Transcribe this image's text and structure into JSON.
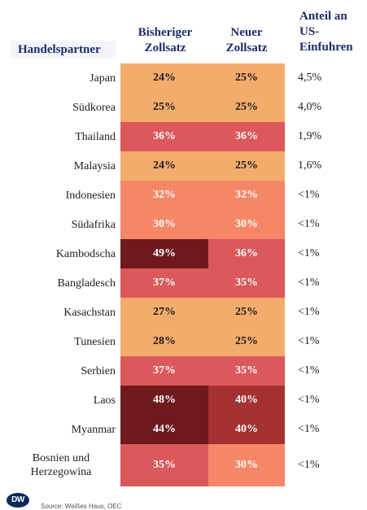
{
  "headers": {
    "partner": "Handelspartner",
    "old_rate": [
      "Bisheriger",
      "Zollsatz"
    ],
    "new_rate": [
      "Neuer",
      "Zollsatz"
    ],
    "share": [
      "Anteil an",
      "US-",
      "Einfuhren"
    ]
  },
  "footer": {
    "logo": "DW",
    "source": "Source: Weißes Haus, OEC"
  },
  "colors": {
    "light": "#f4ac6c",
    "salmon": "#f58768",
    "red": "#dc585a",
    "dark_red": "#a53133",
    "darkest": "#6e1a1d",
    "header_text": "#1f2b6b"
  },
  "chart_data": {
    "type": "table",
    "columns": [
      "Handelspartner",
      "Bisheriger Zollsatz",
      "Neuer Zollsatz",
      "Anteil an US-Einfuhren"
    ],
    "rows": [
      {
        "partner": "Japan",
        "old": "24%",
        "new": "25%",
        "share": "4,5%"
      },
      {
        "partner": "Südkorea",
        "old": "25%",
        "new": "25%",
        "share": "4,0%"
      },
      {
        "partner": "Thailand",
        "old": "36%",
        "new": "36%",
        "share": "1,9%"
      },
      {
        "partner": "Malaysia",
        "old": "24%",
        "new": "25%",
        "share": "1,6%"
      },
      {
        "partner": "Indonesien",
        "old": "32%",
        "new": "32%",
        "share": "<1%"
      },
      {
        "partner": "Südafrika",
        "old": "30%",
        "new": "30%",
        "share": "<1%"
      },
      {
        "partner": "Kambodscha",
        "old": "49%",
        "new": "36%",
        "share": "<1%"
      },
      {
        "partner": "Bangladesch",
        "old": "37%",
        "new": "35%",
        "share": "<1%"
      },
      {
        "partner": "Kasachstan",
        "old": "27%",
        "new": "25%",
        "share": "<1%"
      },
      {
        "partner": "Tunesien",
        "old": "28%",
        "new": "25%",
        "share": "<1%"
      },
      {
        "partner": "Serbien",
        "old": "37%",
        "new": "35%",
        "share": "<1%"
      },
      {
        "partner": "Laos",
        "old": "48%",
        "new": "40%",
        "share": "<1%"
      },
      {
        "partner": "Myanmar",
        "old": "44%",
        "new": "40%",
        "share": "<1%"
      },
      {
        "partner": "Bosnien und Herzegowina",
        "old": "35%",
        "new": "30%",
        "share": "<1%"
      }
    ]
  }
}
